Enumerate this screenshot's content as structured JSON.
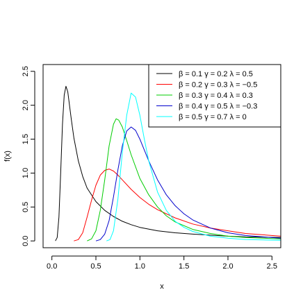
{
  "chart_data": {
    "type": "line",
    "title": "",
    "xlabel": "x",
    "ylabel": "f(x)",
    "xlim": [
      -0.1,
      2.6
    ],
    "ylim": [
      -0.1,
      2.6
    ],
    "x_ticks": [
      0.0,
      0.5,
      1.0,
      1.5,
      2.0,
      2.5
    ],
    "x_tick_labels": [
      "0.0",
      "0.5",
      "1.0",
      "1.5",
      "2.0",
      "2.5"
    ],
    "y_ticks": [
      0.0,
      0.5,
      1.0,
      1.5,
      2.0,
      2.5
    ],
    "y_tick_labels": [
      "0.0",
      "0.5",
      "1.0",
      "1.5",
      "2.0",
      "2.5"
    ],
    "grid": false,
    "legend_position": "top-right",
    "series": [
      {
        "name": "β = 0.1   γ = 0.2   λ = 0.5",
        "color": "#000000",
        "x": [
          0.04,
          0.06,
          0.08,
          0.1,
          0.12,
          0.14,
          0.16,
          0.18,
          0.2,
          0.22,
          0.25,
          0.3,
          0.35,
          0.4,
          0.5,
          0.6,
          0.7,
          0.8,
          0.9,
          1.0,
          1.2,
          1.4,
          1.6,
          1.8,
          2.0,
          2.2,
          2.4,
          2.6
        ],
        "y": [
          0.0,
          0.05,
          0.35,
          1.0,
          1.72,
          2.15,
          2.28,
          2.2,
          2.0,
          1.8,
          1.52,
          1.18,
          0.95,
          0.78,
          0.58,
          0.45,
          0.36,
          0.29,
          0.24,
          0.2,
          0.15,
          0.12,
          0.1,
          0.085,
          0.07,
          0.06,
          0.055,
          0.05
        ]
      },
      {
        "name": "β = 0.2   γ = 0.3   λ = −0.5",
        "color": "#ff0000",
        "x": [
          0.25,
          0.3,
          0.35,
          0.4,
          0.45,
          0.5,
          0.55,
          0.6,
          0.65,
          0.7,
          0.75,
          0.8,
          0.9,
          1.0,
          1.1,
          1.2,
          1.4,
          1.6,
          1.8,
          2.0,
          2.2,
          2.4,
          2.6
        ],
        "y": [
          0.0,
          0.02,
          0.12,
          0.35,
          0.6,
          0.82,
          0.97,
          1.04,
          1.06,
          1.03,
          0.97,
          0.9,
          0.76,
          0.64,
          0.54,
          0.46,
          0.34,
          0.25,
          0.19,
          0.15,
          0.11,
          0.09,
          0.07
        ]
      },
      {
        "name": "β = 0.3   γ = 0.4   λ = 0.3",
        "color": "#00cc00",
        "x": [
          0.4,
          0.45,
          0.5,
          0.55,
          0.6,
          0.65,
          0.7,
          0.73,
          0.76,
          0.8,
          0.85,
          0.9,
          1.0,
          1.1,
          1.2,
          1.3,
          1.4,
          1.6,
          1.8,
          2.0,
          2.2,
          2.4,
          2.6
        ],
        "y": [
          0.0,
          0.03,
          0.15,
          0.45,
          0.9,
          1.4,
          1.72,
          1.8,
          1.78,
          1.68,
          1.48,
          1.27,
          0.92,
          0.68,
          0.5,
          0.37,
          0.28,
          0.17,
          0.11,
          0.07,
          0.05,
          0.04,
          0.03
        ]
      },
      {
        "name": "β = 0.4   γ = 0.5   λ = −0.3",
        "color": "#0000cc",
        "x": [
          0.5,
          0.55,
          0.6,
          0.65,
          0.7,
          0.75,
          0.8,
          0.85,
          0.9,
          0.95,
          1.0,
          1.1,
          1.2,
          1.3,
          1.4,
          1.5,
          1.6,
          1.8,
          2.0,
          2.2,
          2.4,
          2.6
        ],
        "y": [
          0.0,
          0.02,
          0.1,
          0.3,
          0.65,
          1.05,
          1.4,
          1.62,
          1.68,
          1.63,
          1.5,
          1.18,
          0.9,
          0.68,
          0.52,
          0.4,
          0.31,
          0.19,
          0.12,
          0.08,
          0.06,
          0.04
        ]
      },
      {
        "name": "β = 0.5   γ = 0.7   λ = 0",
        "color": "#00ffff",
        "x": [
          0.62,
          0.66,
          0.7,
          0.75,
          0.8,
          0.85,
          0.9,
          0.95,
          1.0,
          1.05,
          1.1,
          1.2,
          1.3,
          1.4,
          1.5,
          1.6,
          1.8,
          2.0,
          2.2,
          2.4,
          2.6
        ],
        "y": [
          0.0,
          0.02,
          0.15,
          0.62,
          1.3,
          1.85,
          2.18,
          2.12,
          1.85,
          1.5,
          1.18,
          0.72,
          0.45,
          0.29,
          0.2,
          0.14,
          0.07,
          0.04,
          0.02,
          0.015,
          0.01
        ]
      }
    ]
  }
}
